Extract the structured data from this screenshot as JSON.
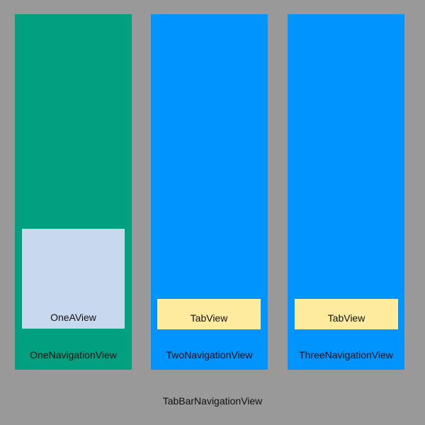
{
  "root": {
    "label": "TabBarNavigationView",
    "color": "#999999"
  },
  "navigation_views": [
    {
      "label": "OneNavigationView",
      "color": "#00A080",
      "child": {
        "label": "OneAView",
        "color": "#C8D8EE"
      }
    },
    {
      "label": "TwoNavigationView",
      "color": "#0094FF",
      "child": {
        "label": "TabView",
        "color": "#FFEB9E"
      }
    },
    {
      "label": "ThreeNavigationView",
      "color": "#0094FF",
      "child": {
        "label": "TabView",
        "color": "#FFEB9E"
      }
    }
  ]
}
